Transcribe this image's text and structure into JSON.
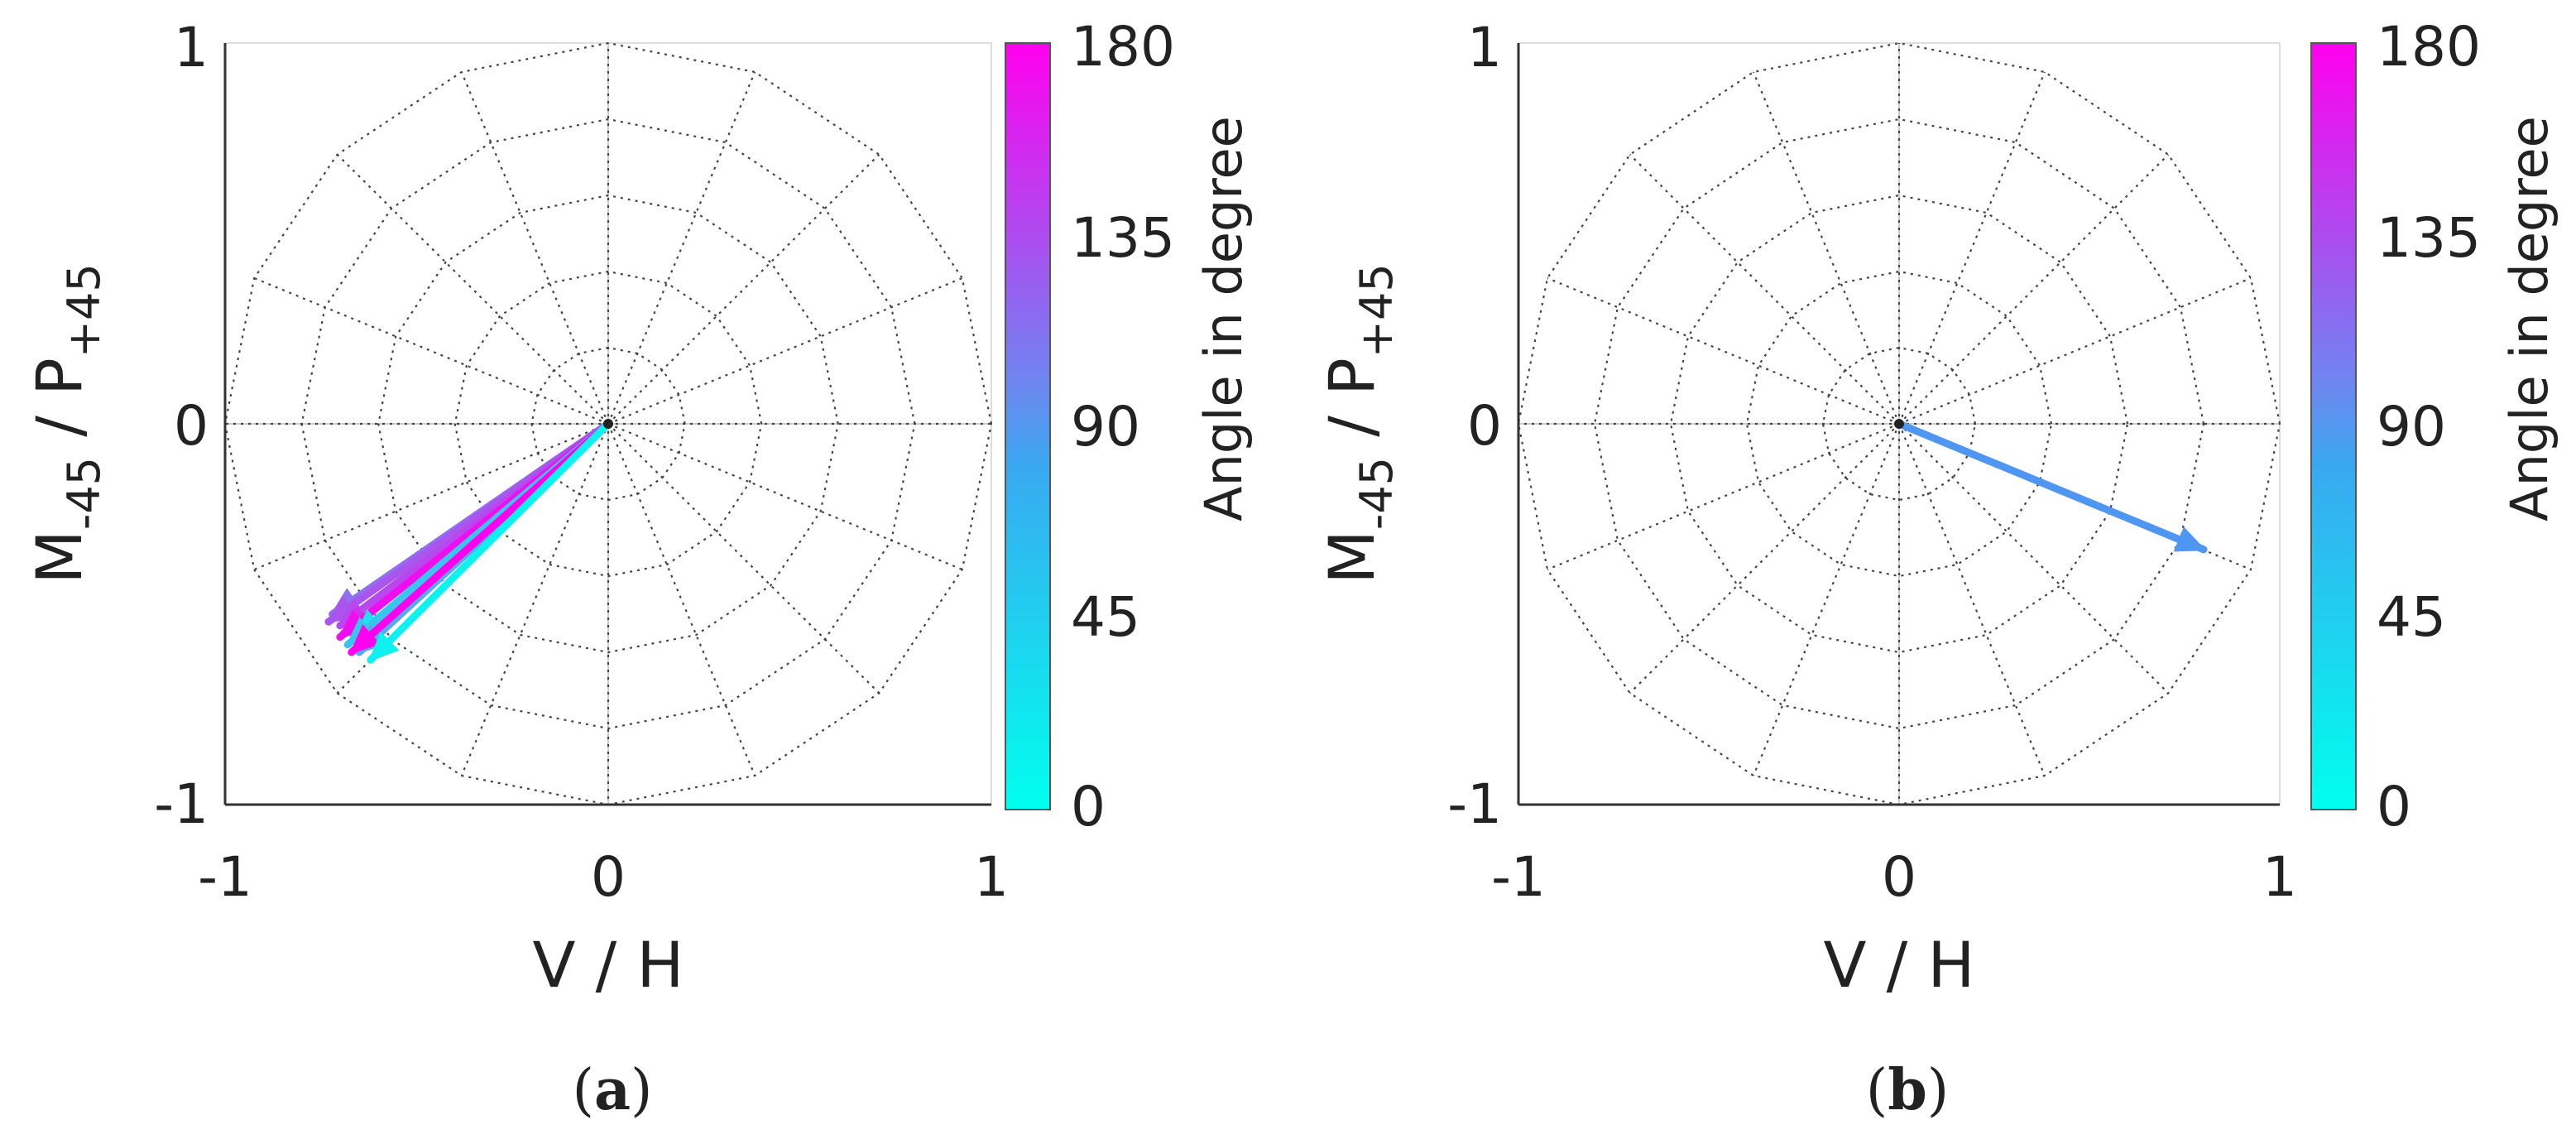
{
  "colors": {
    "colormap_low": "#00ffee",
    "colormap_high": "#ff00ee",
    "axis": "#333333",
    "grid": "#444444",
    "arrow_b": "#4f96f2"
  },
  "chart_data": [
    {
      "type": "polar-vector",
      "xlabel": "V / H",
      "ylabel_main": "M",
      "ylabel_sub1": "-45",
      "ylabel_mid": " / P",
      "ylabel_sub2": "+45",
      "xlim": [
        -1,
        1
      ],
      "ylim": [
        -1,
        1
      ],
      "xticks": [
        "-1",
        "0",
        "1"
      ],
      "yticks": [
        "1",
        "0",
        "-1"
      ],
      "grid": true,
      "colorbar": {
        "label": "Angle in degree",
        "range": [
          0,
          180
        ],
        "ticks": [
          "180",
          "135",
          "90",
          "45",
          "0"
        ]
      },
      "caption_open": "(",
      "caption_letter": "a",
      "caption_close": ")",
      "vectors": [
        {
          "x": -0.72,
          "y": -0.5,
          "angle": 100
        },
        {
          "x": -0.73,
          "y": -0.52,
          "angle": 120
        },
        {
          "x": -0.7,
          "y": -0.53,
          "angle": 130
        },
        {
          "x": -0.69,
          "y": -0.55,
          "angle": 150
        },
        {
          "x": -0.7,
          "y": -0.56,
          "angle": 170
        },
        {
          "x": -0.66,
          "y": -0.56,
          "angle": 20
        },
        {
          "x": -0.68,
          "y": -0.58,
          "angle": 40
        },
        {
          "x": -0.65,
          "y": -0.6,
          "angle": 60
        },
        {
          "x": -0.67,
          "y": -0.6,
          "angle": 180
        },
        {
          "x": -0.62,
          "y": -0.62,
          "angle": 10
        }
      ]
    },
    {
      "type": "polar-vector",
      "xlabel": "V / H",
      "ylabel_main": "M",
      "ylabel_sub1": "-45",
      "ylabel_mid": " / P",
      "ylabel_sub2": "+45",
      "xlim": [
        -1,
        1
      ],
      "ylim": [
        -1,
        1
      ],
      "xticks": [
        "-1",
        "0",
        "1"
      ],
      "yticks": [
        "1",
        "0",
        "-1"
      ],
      "grid": true,
      "colorbar": {
        "label": "Angle in degree",
        "range": [
          0,
          180
        ],
        "ticks": [
          "180",
          "135",
          "90",
          "45",
          "0"
        ]
      },
      "caption_open": "(",
      "caption_letter": "b",
      "caption_close": ")",
      "vectors": [
        {
          "x": 0.8,
          "y": -0.33,
          "angle": 85
        }
      ]
    }
  ]
}
